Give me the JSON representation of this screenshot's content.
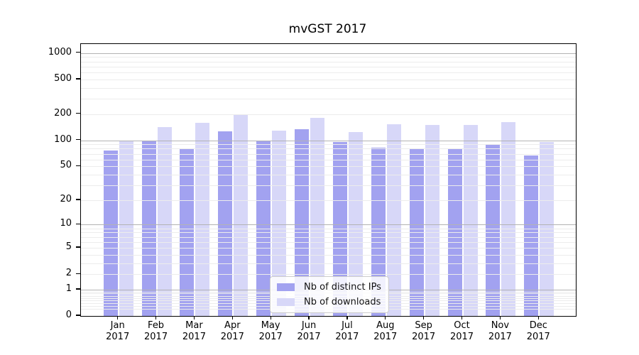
{
  "chart_data": {
    "type": "bar",
    "title": "mvGST 2017",
    "categories": [
      "Jan",
      "Feb",
      "Mar",
      "Apr",
      "May",
      "Jun",
      "Jul",
      "Aug",
      "Sep",
      "Oct",
      "Nov",
      "Dec"
    ],
    "category_year": "2017",
    "series": [
      {
        "name": "Nb of distinct IPs",
        "color": "#a2a2f0",
        "values": [
          77,
          99,
          81,
          126,
          97,
          134,
          95,
          82,
          80,
          79,
          90,
          67
        ]
      },
      {
        "name": "Nb of downloads",
        "color": "#d7d7f8",
        "values": [
          97,
          142,
          159,
          196,
          129,
          182,
          124,
          152,
          151,
          151,
          163,
          96
        ]
      }
    ],
    "xlabel": "",
    "ylabel": "",
    "yscale": "log10(value+1)",
    "y_ticks": [
      0,
      1,
      2,
      5,
      10,
      20,
      50,
      100,
      200,
      500,
      1000
    ],
    "ylim": [
      0,
      1270
    ],
    "grid": {
      "horizontal": true,
      "major_at": [
        1,
        10,
        100,
        1000
      ],
      "minor": true
    },
    "legend": {
      "position": "inside-lower-center",
      "labels": [
        "Nb of distinct IPs",
        "Nb of downloads"
      ]
    }
  },
  "colors": {
    "background": "#ffffff",
    "axis": "#000000",
    "text": "#000000",
    "grid_major": "#b3b3b3",
    "grid_minor": "#ececec",
    "legend_border": "#cccccc",
    "series_ips": "#a2a2f0",
    "series_downloads": "#d7d7f8"
  }
}
